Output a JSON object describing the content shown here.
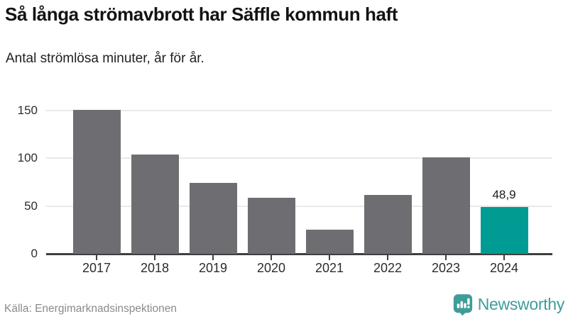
{
  "header": {
    "title": "Så långa strömavbrott har Säffle kommun haft",
    "subtitle": "Antal strömlösa minuter, år för år."
  },
  "chart_data": {
    "type": "bar",
    "title": "Så långa strömavbrott har Säffle kommun haft",
    "subtitle": "Antal strömlösa minuter, år för år.",
    "categories": [
      "2017",
      "2018",
      "2019",
      "2020",
      "2021",
      "2022",
      "2023",
      "2024"
    ],
    "values": [
      151,
      104,
      74,
      59,
      25,
      62,
      101,
      48.9
    ],
    "bar_labels": [
      "",
      "",
      "",
      "",
      "",
      "",
      "",
      "48,9"
    ],
    "xlabel": "",
    "ylabel": "",
    "ylim": [
      0,
      150
    ],
    "yticks": [
      0,
      50,
      100,
      150
    ],
    "grid": true,
    "legend": false,
    "highlight_index": 7,
    "colors": {
      "bar": "#6e6e72",
      "highlight": "#009c93",
      "gridline": "#e9e9e9",
      "axis": "#3f3f3f"
    }
  },
  "footer": {
    "source": "Källa: Energimarknadsinspektionen",
    "brand": "Newsworthy",
    "brand_color": "#3e9d98"
  }
}
